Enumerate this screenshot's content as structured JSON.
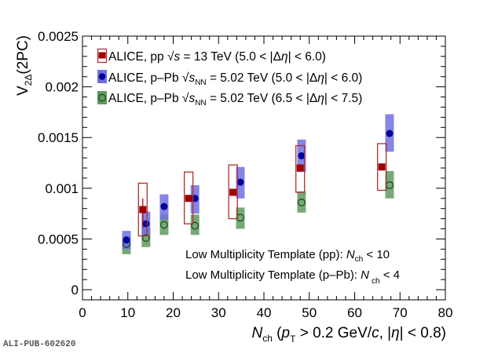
{
  "chart_data": {
    "type": "scatter",
    "title": "",
    "xlabel": "N_ch (p_T > 0.2 GeV/c, |η| < 0.8)",
    "xlabel_parts": {
      "main": "N",
      "main_sub": "ch",
      "paren_open": " (",
      "p": "p",
      "p_sub": "T",
      "rest1": " > 0.2 GeV/",
      "c": "c",
      "rest2": ", |",
      "eta": "η",
      "rest3": "| < 0.8)"
    },
    "ylabel": "V_2Δ(2PC)",
    "ylabel_parts": {
      "main": "V",
      "sub": "2Δ",
      "rest": "(2PC)"
    },
    "xlim": [
      0,
      80
    ],
    "ylim": [
      -0.0001,
      0.0025
    ],
    "xticks": [
      0,
      10,
      20,
      30,
      40,
      50,
      60,
      70,
      80
    ],
    "xtick_labels": [
      "0",
      "10",
      "20",
      "30",
      "40",
      "50",
      "60",
      "70",
      "80"
    ],
    "yticks": [
      0,
      0.0005,
      0.001,
      0.0015,
      0.002,
      0.0025
    ],
    "ytick_labels": [
      "0",
      "0.0005",
      "0.001",
      "0.0015",
      "0.002",
      "0.0025"
    ],
    "grid": false,
    "legend_position": "top-left",
    "series": [
      {
        "name": "ALICE, pp √s = 13 TeV (5.0 < |Δη| < 6.0)",
        "legend_parts": {
          "a": "ALICE, pp ",
          "sqrt": "√",
          "s": "s",
          "sub": "",
          "b": " = 13 TeV (5.0 < |",
          "delta": "Δ",
          "eta": "η",
          "c": "| < 6.0)"
        },
        "marker": "filled-square",
        "color": "#a00000",
        "syst_style": "open-box",
        "points": [
          {
            "x": 13.3,
            "y": 0.00079,
            "stat_lo": 0.00061,
            "stat_hi": 0.0009,
            "syst_lo": 0.00053,
            "syst_hi": 0.00105
          },
          {
            "x": 23.4,
            "y": 0.0009,
            "stat_lo": 0.00088,
            "stat_hi": 0.00092,
            "syst_lo": 0.00065,
            "syst_hi": 0.00116
          },
          {
            "x": 33.2,
            "y": 0.00096,
            "stat_lo": 0.00094,
            "stat_hi": 0.00098,
            "syst_lo": 0.0007,
            "syst_hi": 0.00123
          },
          {
            "x": 48.0,
            "y": 0.0012,
            "stat_lo": 0.00118,
            "stat_hi": 0.00122,
            "syst_lo": 0.00096,
            "syst_hi": 0.00142
          },
          {
            "x": 66.0,
            "y": 0.00121,
            "stat_lo": 0.00119,
            "stat_hi": 0.00123,
            "syst_lo": 0.00098,
            "syst_hi": 0.00144
          }
        ]
      },
      {
        "name": "ALICE, p–Pb √s_NN = 5.02 TeV (5.0 < |Δη| < 6.0)",
        "legend_parts": {
          "a": "ALICE, p–Pb ",
          "sqrt": "√",
          "s": "s",
          "sub": "NN",
          "b": " = 5.02 TeV (5.0 < |",
          "delta": "Δ",
          "eta": "η",
          "c": "| < 6.0)"
        },
        "marker": "filled-circle",
        "color": "#00009a",
        "box_color": "#7070e0",
        "syst_style": "filled-box",
        "points": [
          {
            "x": 9.7,
            "y": 0.00049,
            "syst_lo": 0.0004,
            "syst_hi": 0.00058
          },
          {
            "x": 14.0,
            "y": 0.00065,
            "syst_lo": 0.00053,
            "syst_hi": 0.00077
          },
          {
            "x": 18.0,
            "y": 0.00082,
            "syst_lo": 0.00069,
            "syst_hi": 0.00094
          },
          {
            "x": 24.8,
            "y": 0.0009,
            "syst_lo": 0.00075,
            "syst_hi": 0.00103
          },
          {
            "x": 34.8,
            "y": 0.00106,
            "syst_lo": 0.0009,
            "syst_hi": 0.00121
          },
          {
            "x": 48.3,
            "y": 0.00132,
            "syst_lo": 0.00116,
            "syst_hi": 0.00148
          },
          {
            "x": 67.7,
            "y": 0.00154,
            "syst_lo": 0.00136,
            "syst_hi": 0.00173
          }
        ]
      },
      {
        "name": "ALICE, p–Pb √s_NN = 5.02 TeV (6.5 < |Δη| < 7.5)",
        "legend_parts": {
          "a": "ALICE, p–Pb ",
          "sqrt": "√",
          "s": "s",
          "sub": "NN",
          "b": " = 5.02 TeV (6.5 < |",
          "delta": "Δ",
          "eta": "η",
          "c": "| < 7.5)"
        },
        "marker": "open-circle",
        "color": "#0c3d0c",
        "box_color": "#5f9a5f",
        "syst_style": "filled-box",
        "points": [
          {
            "x": 9.7,
            "y": 0.00045,
            "syst_lo": 0.00035,
            "syst_hi": 0.00053
          },
          {
            "x": 14.0,
            "y": 0.00051,
            "syst_lo": 0.00042,
            "syst_hi": 0.00061
          },
          {
            "x": 18.0,
            "y": 0.00064,
            "syst_lo": 0.00054,
            "syst_hi": 0.00074
          },
          {
            "x": 24.8,
            "y": 0.00063,
            "syst_lo": 0.00054,
            "syst_hi": 0.00074
          },
          {
            "x": 34.8,
            "y": 0.00071,
            "syst_lo": 0.0006,
            "syst_hi": 0.00081
          },
          {
            "x": 48.3,
            "y": 0.00086,
            "syst_lo": 0.00076,
            "syst_hi": 0.00097
          },
          {
            "x": 67.7,
            "y": 0.00103,
            "syst_lo": 0.0009,
            "syst_hi": 0.00117
          }
        ]
      }
    ],
    "annotations": [
      {
        "text": "Low Multiplicity Template (pp): N_ch < 10",
        "parts": {
          "a": "Low Multiplicity Template (pp): ",
          "n": "N",
          "sub": "ch",
          "b": " < 10"
        }
      },
      {
        "text": "Low Multiplicity Template (p–Pb): N_ch < 4",
        "parts": {
          "a": "Low Multiplicity Template (p–Pb): ",
          "n": "N",
          "sub": "ch",
          "b": " < 4"
        }
      }
    ]
  },
  "footer": {
    "pub_id": "ALI-PUB-602620"
  }
}
